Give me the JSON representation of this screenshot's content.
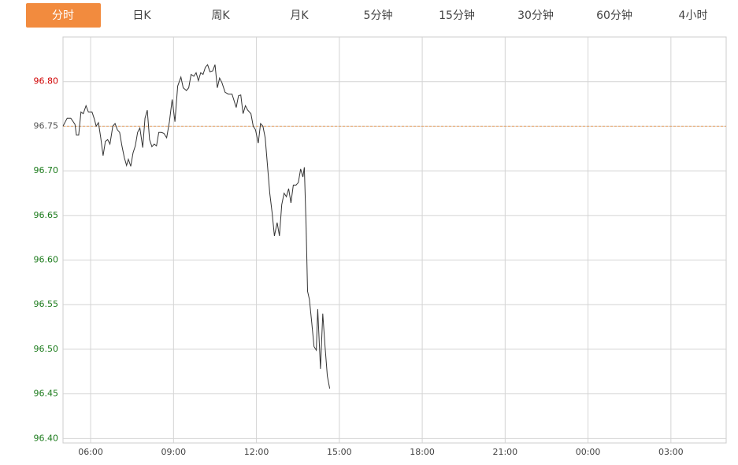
{
  "tabs": [
    "分时",
    "日K",
    "周K",
    "月K",
    "5分钟",
    "15分钟",
    "30分钟",
    "60分钟",
    "4小时"
  ],
  "active_tab": 0,
  "chart_data": {
    "type": "line",
    "x": [
      0,
      9,
      17,
      26,
      29,
      34,
      39,
      44,
      50,
      55,
      63,
      68,
      72,
      77,
      82,
      87,
      92,
      97,
      102,
      108,
      113,
      118,
      123,
      128,
      133,
      138,
      142,
      147,
      152,
      157,
      162,
      167,
      173,
      178,
      183,
      188,
      193,
      198,
      203,
      208,
      214,
      219,
      225,
      231,
      237,
      243,
      249,
      256,
      261,
      268,
      273,
      278,
      284,
      289,
      294,
      299,
      304,
      309,
      314,
      319,
      325,
      330,
      335,
      340,
      345,
      352,
      359,
      367,
      376,
      381,
      386,
      391,
      396,
      401,
      408,
      413,
      418,
      424,
      429,
      434,
      439,
      444,
      449,
      454,
      459,
      465,
      470,
      475,
      480,
      485,
      490,
      495,
      500,
      506,
      511,
      516,
      521,
      524,
      528,
      531,
      535,
      540,
      545,
      550,
      553,
      559,
      564,
      569,
      574,
      579
    ],
    "series": [
      {
        "color": "#333333",
        "values": [
          96.75,
          96.759,
          96.759,
          96.752,
          96.74,
          96.74,
          96.766,
          96.764,
          96.773,
          96.766,
          96.766,
          96.758,
          96.75,
          96.754,
          96.737,
          96.717,
          96.733,
          96.735,
          96.73,
          96.75,
          96.753,
          96.746,
          96.743,
          96.728,
          96.715,
          96.706,
          96.713,
          96.705,
          96.72,
          96.728,
          96.743,
          96.748,
          96.726,
          96.759,
          96.768,
          96.735,
          96.727,
          96.73,
          96.728,
          96.743,
          96.743,
          96.742,
          96.737,
          96.755,
          96.78,
          96.755,
          96.795,
          96.805,
          96.793,
          96.79,
          96.793,
          96.808,
          96.806,
          96.81,
          96.801,
          96.81,
          96.808,
          96.816,
          96.819,
          96.811,
          96.812,
          96.819,
          96.793,
          96.804,
          96.799,
          96.788,
          96.786,
          96.786,
          96.771,
          96.784,
          96.785,
          96.764,
          96.773,
          96.768,
          96.764,
          96.75,
          96.746,
          96.731,
          96.753,
          96.75,
          96.737,
          96.706,
          96.675,
          96.653,
          96.627,
          96.642,
          96.627,
          96.662,
          96.675,
          96.671,
          96.68,
          96.664,
          96.684,
          96.684,
          96.687,
          96.702,
          96.693,
          96.704,
          96.636,
          96.565,
          96.556,
          96.53,
          96.503,
          96.499,
          96.545,
          96.478,
          96.54,
          96.503,
          96.47,
          96.456
        ]
      }
    ],
    "xlim": [
      0,
      1440
    ],
    "xticks": [
      {
        "value": 60,
        "label": "06:00"
      },
      {
        "value": 240,
        "label": "09:00"
      },
      {
        "value": 420,
        "label": "12:00"
      },
      {
        "value": 600,
        "label": "15:00"
      },
      {
        "value": 780,
        "label": "18:00"
      },
      {
        "value": 960,
        "label": "21:00"
      },
      {
        "value": 1140,
        "label": "00:00"
      },
      {
        "value": 1320,
        "label": "03:00"
      }
    ],
    "ylim": [
      96.395,
      96.85
    ],
    "yticks": [
      {
        "value": 96.4,
        "label": "96.40"
      },
      {
        "value": 96.45,
        "label": "96.45"
      },
      {
        "value": 96.5,
        "label": "96.50"
      },
      {
        "value": 96.55,
        "label": "96.55"
      },
      {
        "value": 96.6,
        "label": "96.60"
      },
      {
        "value": 96.65,
        "label": "96.65"
      },
      {
        "value": 96.7,
        "label": "96.70"
      },
      {
        "value": 96.75,
        "label": "96.75"
      },
      {
        "value": 96.8,
        "label": "96.80"
      }
    ],
    "reference_line": {
      "value": 96.75,
      "color": "#e8a060"
    },
    "up_color": "#d00000",
    "down_color": "#1a7a1a",
    "neutral_color": "#555555",
    "grid": true
  }
}
